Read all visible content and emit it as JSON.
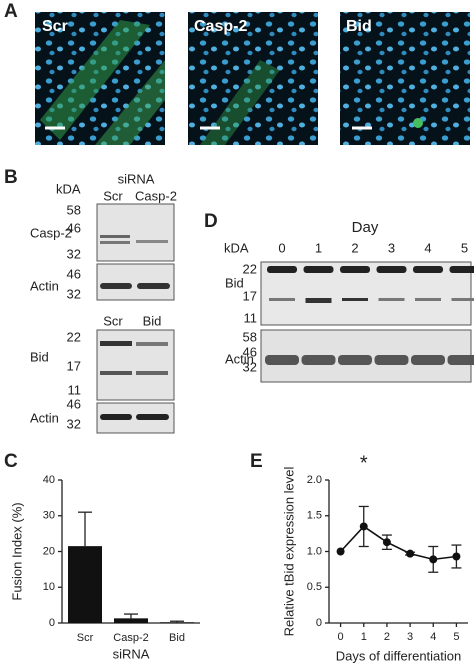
{
  "figure": {
    "panel_labels": [
      "A",
      "B",
      "C",
      "D",
      "E"
    ],
    "A": {
      "labels": [
        "Scr",
        "Casp-2",
        "Bid"
      ]
    },
    "B": {
      "kda": "kDA",
      "siRNA": "siRNA",
      "lanes_top": [
        "Scr",
        "Casp-2"
      ],
      "row_casp2": "Casp-2",
      "actin1": "Actin",
      "markers_casp2": [
        58,
        46,
        32
      ],
      "markers_actin1": [
        46,
        32
      ],
      "lanes_bottom": [
        "Scr",
        "Bid"
      ],
      "row_bid": "Bid",
      "markers_bid": [
        22,
        17,
        11
      ],
      "actin2": "Actin",
      "markers_actin2": [
        46,
        32
      ]
    },
    "D": {
      "day": "Day",
      "kda": "kDA",
      "lanes": [
        0,
        1,
        2,
        3,
        4,
        5
      ],
      "markers_bid": [
        22,
        17,
        11
      ],
      "markers_actin": [
        58,
        46,
        32
      ],
      "row_bid": "Bid",
      "row_actin": "Actin"
    }
  },
  "chart_data": [
    {
      "type": "bar",
      "ylabel": "Fusion Index (%)",
      "xlabel": "siRNA",
      "categories": [
        "Scr",
        "Casp-2",
        "Bid"
      ],
      "values": [
        21.5,
        1.3,
        0.2
      ],
      "errors": [
        9.5,
        1.2,
        0.3
      ],
      "color": "#111111",
      "ylim": [
        0,
        40
      ],
      "yticks": [
        0,
        10,
        20,
        30,
        40
      ]
    },
    {
      "type": "line",
      "ylabel": "Relative tBid expression level",
      "xlabel": "Days of differentiation",
      "x": [
        0,
        1,
        2,
        3,
        4,
        5
      ],
      "values": [
        1.0,
        1.35,
        1.13,
        0.97,
        0.89,
        0.93
      ],
      "errors": [
        0,
        0.28,
        0.1,
        0.02,
        0.18,
        0.16
      ],
      "color": "#111111",
      "xlim": [
        -0.5,
        5.5
      ],
      "xticks": [
        0,
        1,
        2,
        3,
        4,
        5
      ],
      "ylim": [
        0,
        2
      ],
      "yticks": [
        0,
        0.5,
        {
          "value": 1,
          "label": "1.0"
        },
        1.5,
        {
          "value": 2,
          "label": "2.0"
        }
      ],
      "annotations": [
        {
          "text": "*",
          "x": 1
        }
      ]
    }
  ]
}
